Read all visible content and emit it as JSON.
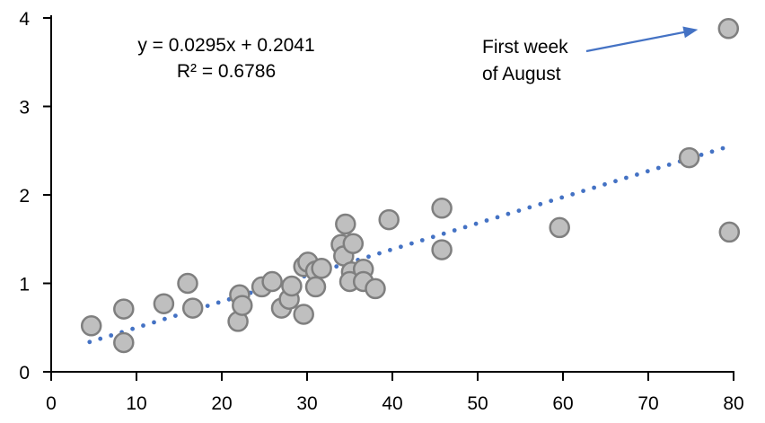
{
  "chart_data": {
    "type": "scatter",
    "title": "",
    "xlabel": "",
    "ylabel": "",
    "xlim": [
      0,
      80
    ],
    "ylim": [
      0,
      4
    ],
    "x_ticks": [
      "0",
      "10",
      "20",
      "30",
      "40",
      "50",
      "60",
      "70",
      "80"
    ],
    "x_tick_values": [
      0,
      10,
      20,
      30,
      40,
      50,
      60,
      70,
      80
    ],
    "y_ticks": [
      "0",
      "1",
      "2",
      "3",
      "4"
    ],
    "y_tick_values": [
      0,
      1,
      2,
      3,
      4
    ],
    "grid": false,
    "legend": false,
    "points": [
      [
        4.7,
        0.52
      ],
      [
        8.5,
        0.71
      ],
      [
        8.5,
        0.33
      ],
      [
        13.2,
        0.77
      ],
      [
        16.0,
        1.0
      ],
      [
        16.6,
        0.72
      ],
      [
        21.9,
        0.57
      ],
      [
        22.1,
        0.87
      ],
      [
        22.4,
        0.75
      ],
      [
        24.7,
        0.96
      ],
      [
        25.9,
        1.02
      ],
      [
        27.0,
        0.72
      ],
      [
        27.9,
        0.82
      ],
      [
        28.2,
        0.97
      ],
      [
        29.6,
        1.19
      ],
      [
        30.1,
        1.24
      ],
      [
        29.6,
        0.65
      ],
      [
        31.0,
        1.14
      ],
      [
        31.7,
        1.17
      ],
      [
        31.0,
        0.96
      ],
      [
        34.0,
        1.44
      ],
      [
        34.3,
        1.31
      ],
      [
        34.5,
        1.67
      ],
      [
        35.2,
        1.13
      ],
      [
        35.0,
        1.02
      ],
      [
        35.4,
        1.45
      ],
      [
        36.6,
        1.16
      ],
      [
        36.6,
        1.02
      ],
      [
        38.0,
        0.94
      ],
      [
        39.6,
        1.72
      ],
      [
        45.8,
        1.85
      ],
      [
        45.8,
        1.38
      ],
      [
        59.6,
        1.63
      ],
      [
        74.8,
        2.42
      ],
      [
        79.4,
        3.88
      ],
      [
        79.5,
        1.58
      ]
    ],
    "trendline": {
      "type": "linear",
      "style": "dotted",
      "slope": 0.0295,
      "intercept": 0.2041,
      "x_start": 4.5,
      "x_end": 79.3,
      "equation_label": "y = 0.0295x + 0.2041",
      "r_squared_label": "R² = 0.6786"
    },
    "annotation": {
      "line1": "First week",
      "line2": "of August",
      "target_point": [
        79.4,
        3.88
      ]
    },
    "colors": {
      "marker_fill": "#bfbfbf",
      "marker_stroke": "#7f7f7f",
      "trendline": "#4472c4",
      "arrow": "#4472c4",
      "axis": "#000000",
      "text": "#000000",
      "background": "#ffffff"
    }
  }
}
